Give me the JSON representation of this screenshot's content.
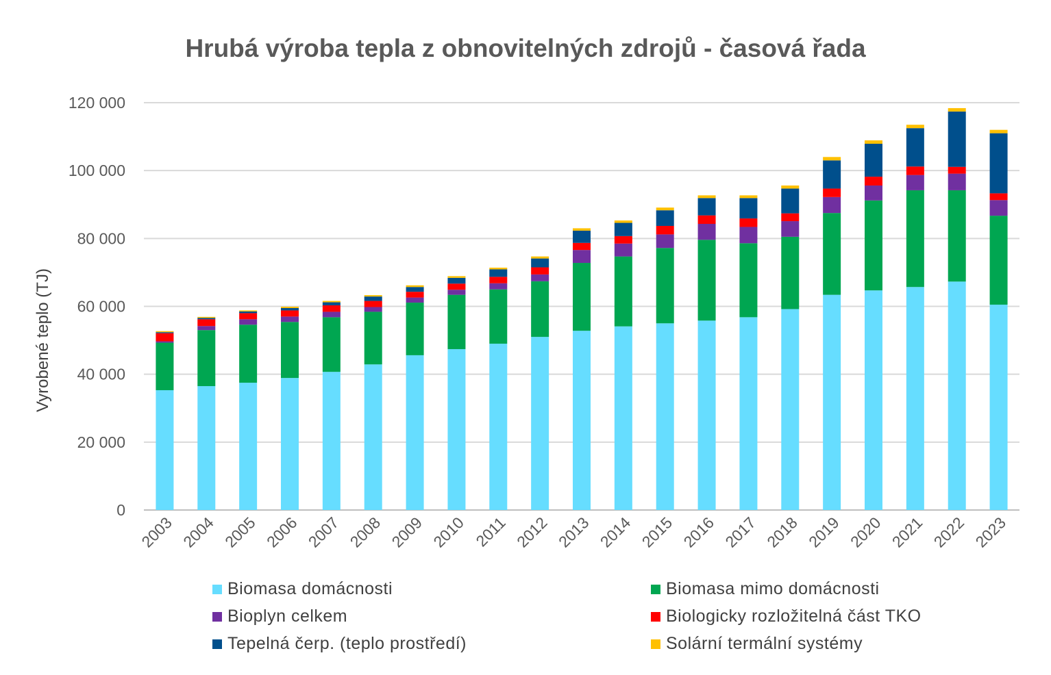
{
  "chart_data": {
    "type": "bar",
    "stacked": true,
    "title": "Hrubá výroba tepla z obnovitelných zdrojů - časová řada",
    "xlabel": "",
    "ylabel": "Vyrobené teplo (TJ)",
    "ylim": [
      0,
      120000
    ],
    "yticks": [
      "0",
      "20 000",
      "40 000",
      "60 000",
      "80 000",
      "100 000",
      "120 000"
    ],
    "ytick_values": [
      0,
      20000,
      40000,
      60000,
      80000,
      100000,
      120000
    ],
    "grid": true,
    "legend_position": "bottom",
    "categories": [
      "2003",
      "2004",
      "2005",
      "2006",
      "2007",
      "2008",
      "2009",
      "2010",
      "2011",
      "2012",
      "2013",
      "2014",
      "2015",
      "2016",
      "2017",
      "2018",
      "2019",
      "2020",
      "2021",
      "2022",
      "2023"
    ],
    "series": [
      {
        "name": "Biomasa domácnosti",
        "color": "#66DDFF",
        "values": [
          35300,
          36500,
          37500,
          38900,
          40700,
          42900,
          45600,
          47400,
          49000,
          51000,
          52800,
          54100,
          55000,
          55800,
          56800,
          59200,
          63400,
          64700,
          65700,
          67300,
          60500
        ]
      },
      {
        "name": "Biomasa mimo domácnosti",
        "color": "#00A651",
        "values": [
          14000,
          16500,
          17100,
          16500,
          16100,
          15500,
          15500,
          16000,
          16000,
          16400,
          20000,
          20600,
          22200,
          23800,
          21800,
          21300,
          24100,
          26500,
          28500,
          26900,
          26200
        ]
      },
      {
        "name": "Bioplyn celkem",
        "color": "#7030A0",
        "values": [
          400,
          1200,
          1600,
          1600,
          1600,
          1400,
          1500,
          1500,
          1800,
          2000,
          3800,
          3800,
          4000,
          4700,
          4800,
          4600,
          4700,
          4400,
          4500,
          4900,
          4600
        ]
      },
      {
        "name": "Biologicky rozložitelná část TKO",
        "color": "#FF0000",
        "values": [
          2400,
          2000,
          1800,
          1800,
          1900,
          1800,
          1700,
          1800,
          1900,
          2100,
          2100,
          2200,
          2500,
          2500,
          2500,
          2300,
          2500,
          2600,
          2500,
          2000,
          2000
        ]
      },
      {
        "name": "Tepelná čerp. (teplo prostředí)",
        "color": "#004F8C",
        "values": [
          300,
          400,
          500,
          700,
          900,
          1300,
          1400,
          1700,
          2200,
          2600,
          3600,
          3900,
          4600,
          5100,
          6000,
          7300,
          8300,
          9700,
          11300,
          16300,
          17700
        ]
      },
      {
        "name": "Solární termální systémy",
        "color": "#FFC000",
        "values": [
          300,
          300,
          300,
          400,
          400,
          400,
          500,
          500,
          500,
          600,
          700,
          700,
          800,
          800,
          800,
          900,
          1000,
          1000,
          1000,
          1000,
          1000
        ]
      }
    ]
  }
}
